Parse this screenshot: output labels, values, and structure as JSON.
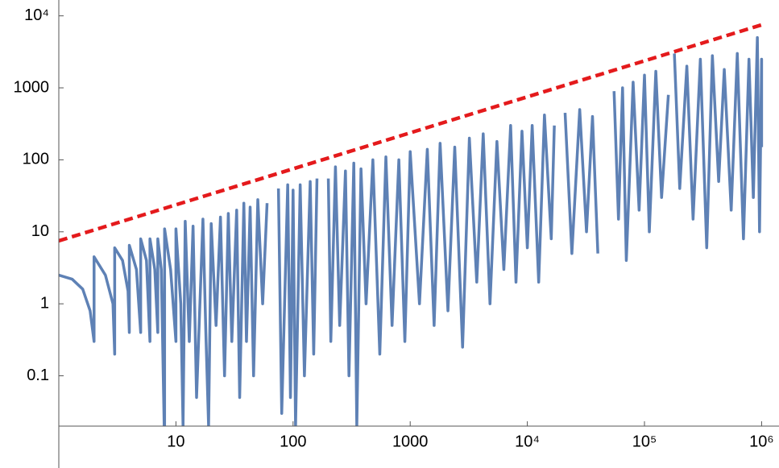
{
  "chart_data": {
    "type": "line",
    "log_x": true,
    "log_y": true,
    "xlim": [
      1,
      1260000
    ],
    "ylim": [
      0.02,
      16600
    ],
    "xticks": [
      10,
      100,
      1000,
      {
        "value": 10000,
        "label": "10⁴"
      },
      {
        "value": 100000,
        "label": "10⁵"
      },
      {
        "value": 1000000,
        "label": "10⁶"
      }
    ],
    "yticks": [
      0.1,
      1,
      10,
      100,
      1000,
      {
        "value": 10000,
        "label": "10⁴"
      }
    ],
    "series": [
      {
        "color": "#5e81b5",
        "dashed": false,
        "x": [
          1,
          1.3,
          1.6,
          1.85,
          2,
          2,
          2.5,
          2.9,
          3,
          3,
          3.5,
          3.9,
          4,
          4,
          4.6,
          5,
          5,
          5.6,
          6,
          6,
          6.6,
          7,
          7,
          7.5,
          8,
          8,
          9,
          10,
          10,
          11,
          11.5,
          12,
          13,
          14,
          15,
          17,
          18,
          19,
          20,
          22,
          24,
          26,
          28,
          30,
          33,
          35,
          38,
          40,
          43,
          46,
          50,
          55,
          60,
          65,
          75,
          80,
          90,
          95,
          100,
          105,
          115,
          125,
          140,
          150,
          160,
          180,
          200,
          210,
          230,
          250,
          280,
          300,
          330,
          350,
          380,
          420,
          480,
          550,
          620,
          700,
          800,
          900,
          1000,
          1200,
          1400,
          1600,
          1800,
          2100,
          2400,
          2800,
          3200,
          3700,
          4200,
          4800,
          5500,
          6300,
          7200,
          8000,
          9000,
          10000,
          11000,
          12500,
          14000,
          16000,
          17000,
          19000,
          21000,
          24000,
          28000,
          32000,
          36000,
          40000,
          48000,
          55000,
          60000,
          65000,
          70000,
          80000,
          90000,
          100000,
          110000,
          125000,
          140000,
          160000,
          170000,
          180000,
          200000,
          230000,
          260000,
          300000,
          340000,
          380000,
          430000,
          480000,
          550000,
          620000,
          700000,
          780000,
          850000,
          920000,
          960000,
          1000000,
          1000000
        ],
        "values": [
          2.5,
          2.2,
          1.6,
          0.8,
          0.3,
          4.5,
          2.5,
          1,
          0.2,
          6,
          4,
          1.5,
          0.4,
          6.5,
          3,
          0.4,
          8,
          4,
          0.3,
          8,
          3,
          0.4,
          8,
          3,
          0.01,
          11,
          3,
          0.3,
          11,
          1,
          0.02,
          14,
          0.3,
          12,
          0.05,
          15,
          0.4,
          0.02,
          13,
          0.5,
          16,
          0.1,
          18,
          0.3,
          20,
          0.05,
          25,
          0.3,
          22,
          0.1,
          28,
          1,
          25,
          null,
          40,
          0.03,
          45,
          0.05,
          38,
          0.02,
          45,
          0.1,
          50,
          0.2,
          55,
          null,
          55,
          0.3,
          80,
          0.5,
          70,
          0.1,
          90,
          0.02,
          75,
          1,
          100,
          0.2,
          110,
          0.5,
          100,
          0.3,
          130,
          1,
          140,
          0.5,
          170,
          0.8,
          150,
          0.25,
          200,
          2,
          230,
          1,
          180,
          3,
          300,
          2,
          250,
          6,
          300,
          2,
          420,
          8,
          300,
          null,
          450,
          5,
          500,
          10,
          400,
          5,
          null,
          900,
          15,
          1000,
          4,
          1200,
          20,
          1500,
          10,
          1700,
          30,
          800,
          null,
          3000,
          40,
          2000,
          15,
          2500,
          6,
          2800,
          50,
          1800,
          20,
          3000,
          8,
          2500,
          30,
          5000,
          10,
          2500,
          150
        ]
      },
      {
        "color": "#e41a1c",
        "dashed": true,
        "x": [
          1,
          1000000
        ],
        "values": [
          7.5,
          7500
        ]
      }
    ]
  }
}
